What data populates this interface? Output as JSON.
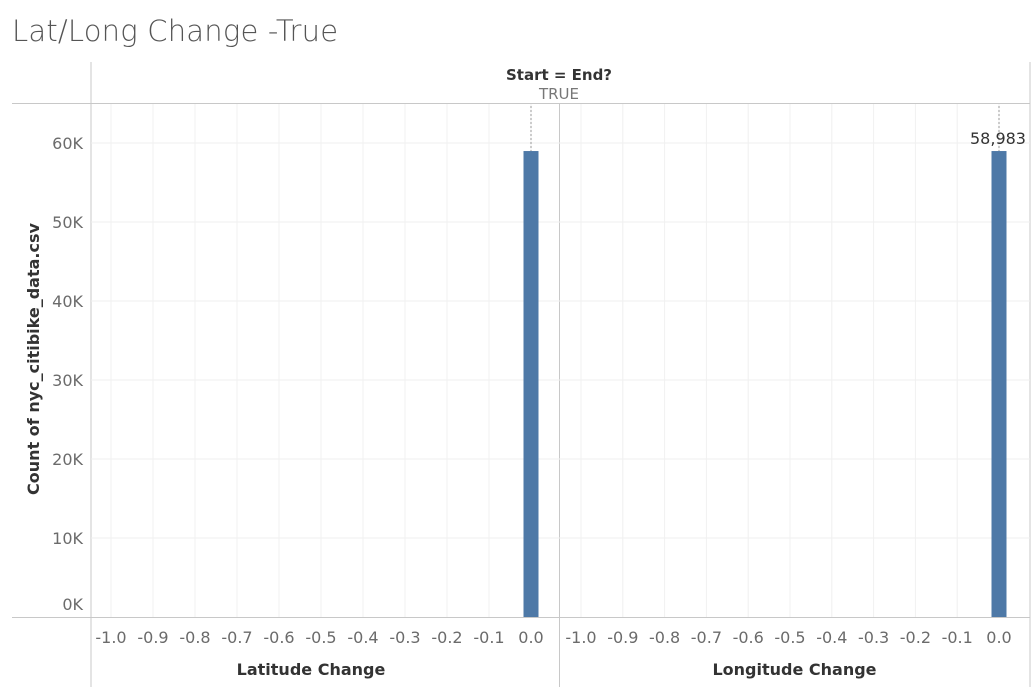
{
  "title": "Lat/Long Change -True",
  "chart_data": {
    "type": "bar",
    "column_header": {
      "title": "Start = End?",
      "value": "TRUE"
    },
    "ylabel": "Count of nyc_citibike_data.csv",
    "ylim": [
      0,
      60000
    ],
    "y_ticks": [
      "60K",
      "50K",
      "40K",
      "30K",
      "20K",
      "10K",
      "0K"
    ],
    "y_tick_values": [
      60000,
      50000,
      40000,
      30000,
      20000,
      10000,
      0
    ],
    "x_ticks": [
      "-1.0",
      "-0.9",
      "-0.8",
      "-0.7",
      "-0.6",
      "-0.5",
      "-0.4",
      "-0.3",
      "-0.2",
      "-0.1",
      "0.0"
    ],
    "x_tick_values": [
      -1.0,
      -0.9,
      -0.8,
      -0.7,
      -0.6,
      -0.5,
      -0.4,
      -0.3,
      -0.2,
      -0.1,
      0.0
    ],
    "xlim": [
      -1.05,
      0.03
    ],
    "bar_color": "#4e79a7",
    "panels": [
      {
        "xlabel": "Latitude Change",
        "bars": [
          {
            "x": 0.0,
            "value": 58983,
            "label": ""
          }
        ]
      },
      {
        "xlabel": "Longitude Change",
        "bars": [
          {
            "x": 0.0,
            "value": 58983,
            "label": "58,983"
          }
        ]
      }
    ]
  }
}
